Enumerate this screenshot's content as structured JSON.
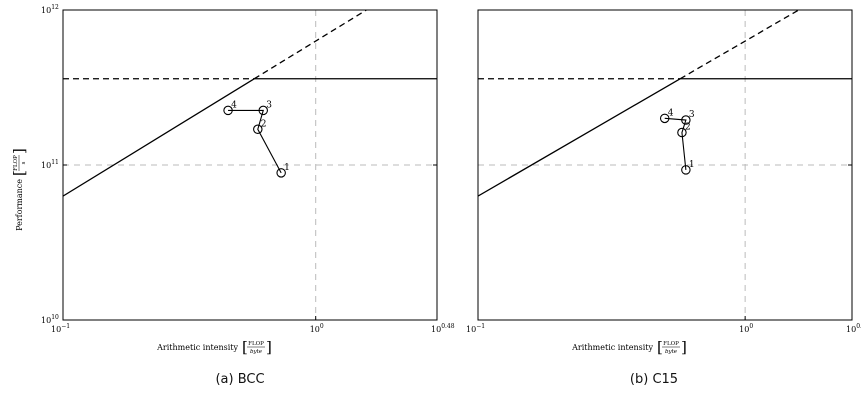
{
  "chart_data": [
    {
      "type": "line",
      "caption": "(a) BCC",
      "xlabel": "Arithmetic intensity",
      "xlabel_unit": {
        "num": "FLOP",
        "den": "byte"
      },
      "ylabel": "Performance",
      "ylabel_unit": {
        "num": "FLOP",
        "den": "s"
      },
      "xscale": "log",
      "yscale": "log",
      "xlim": [
        0.1,
        3.02
      ],
      "ylim": [
        10000000000.0,
        1000000000000.0
      ],
      "x_ticks": [
        {
          "value": 0.1,
          "base": "10",
          "exp": "−1"
        },
        {
          "value": 1,
          "base": "10",
          "exp": "0"
        },
        {
          "value": 3.02,
          "base": "10",
          "exp": "0.48"
        }
      ],
      "y_ticks": [
        {
          "value": 10000000000.0,
          "base": "10",
          "exp": "10"
        },
        {
          "value": 100000000000.0,
          "base": "10",
          "exp": "11"
        },
        {
          "value": 1000000000000.0,
          "base": "10",
          "exp": "12"
        }
      ],
      "grid": "dashed at 10^0 and 10^11",
      "roofline": {
        "peak": 360000000000.0,
        "bandwidth": 630000000000.0,
        "ridge": 0.571
      },
      "series": [
        {
          "x": [
            0.73,
            0.59,
            0.62,
            0.45
          ],
          "y": [
            89000000000.0,
            170000000000.0,
            225000000000.0,
            225000000000.0
          ],
          "labels": [
            "1",
            "2",
            "3",
            "4"
          ]
        }
      ]
    },
    {
      "type": "line",
      "caption": "(b) C15",
      "xlabel": "Arithmetic intensity",
      "xlabel_unit": {
        "num": "FLOP",
        "den": "byte"
      },
      "xscale": "log",
      "yscale": "log",
      "xlim": [
        0.1,
        2.512
      ],
      "ylim": [
        10000000000.0,
        1000000000000.0
      ],
      "x_ticks": [
        {
          "value": 0.1,
          "base": "10",
          "exp": "−1"
        },
        {
          "value": 1,
          "base": "10",
          "exp": "0"
        },
        {
          "value": 2.512,
          "base": "10",
          "exp": "0.4"
        }
      ],
      "grid": "dashed at 10^0 and 10^11",
      "roofline": {
        "peak": 360000000000.0,
        "bandwidth": 630000000000.0,
        "ridge": 0.571
      },
      "series": [
        {
          "x": [
            0.6,
            0.58,
            0.6,
            0.5
          ],
          "y": [
            93000000000.0,
            162000000000.0,
            195000000000.0,
            200000000000.0
          ],
          "labels": [
            "1",
            "2",
            "3",
            "4"
          ]
        }
      ]
    }
  ]
}
